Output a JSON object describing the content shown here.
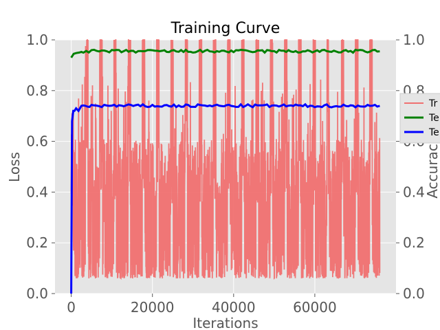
{
  "chart_data": {
    "type": "line",
    "title": "Training Curve",
    "xlabel": "Iterations",
    "ylabel": "Loss",
    "y2label": "Accuracy",
    "xlim": [
      -4000,
      80000
    ],
    "ylim": [
      0,
      1
    ],
    "y2lim": [
      0,
      1
    ],
    "x_ticks": [
      0,
      20000,
      40000,
      60000
    ],
    "x_tick_labels": [
      "0",
      "20000",
      "40000",
      "60000"
    ],
    "y_ticks": [
      0.0,
      0.2,
      0.4,
      0.6,
      0.8,
      1.0
    ],
    "y_tick_labels": [
      "0.0",
      "0.2",
      "0.4",
      "0.6",
      "0.8",
      "1.0"
    ],
    "y2_ticks": [
      0.0,
      0.2,
      0.4,
      0.6,
      0.8,
      1.0
    ],
    "y2_tick_labels": [
      "0.0",
      "0.2",
      "0.4",
      "0.6",
      "0.8",
      "1.0"
    ],
    "grid": true,
    "background": "#e5e5e5",
    "legend_position": "right (clipped)",
    "legend_labels": [
      "Tr",
      "Te",
      "Te"
    ],
    "series": [
      {
        "label": "Tr",
        "axis": "left",
        "color": "#f07070",
        "description": "Train loss, noisy oscillating between ~0.05 and 1.0 from x=0 to 76000, bursts of high values recurring roughly every 3500 iterations",
        "x_range": [
          0,
          76000
        ],
        "y_min_approx": 0.02,
        "y_max_approx": 1.0,
        "bursts_every": 3500
      },
      {
        "label": "Te",
        "axis": "right",
        "color": "#008000",
        "x": [
          0,
          600,
          1200,
          2000,
          3000,
          5000,
          10000,
          20000,
          30000,
          40000,
          50000,
          60000,
          70000,
          76000
        ],
        "y": [
          0.93,
          0.945,
          0.948,
          0.95,
          0.955,
          0.955,
          0.955,
          0.955,
          0.955,
          0.955,
          0.955,
          0.955,
          0.955,
          0.955
        ]
      },
      {
        "label": "Te",
        "axis": "right",
        "color": "#0000ff",
        "x": [
          0,
          200,
          500,
          800,
          1200,
          1800,
          2500,
          3500,
          5000,
          10000,
          20000,
          30000,
          40000,
          50000,
          60000,
          70000,
          76000
        ],
        "y": [
          0.0,
          0.68,
          0.72,
          0.72,
          0.73,
          0.72,
          0.74,
          0.74,
          0.74,
          0.74,
          0.74,
          0.74,
          0.74,
          0.74,
          0.74,
          0.74,
          0.74
        ]
      }
    ]
  }
}
